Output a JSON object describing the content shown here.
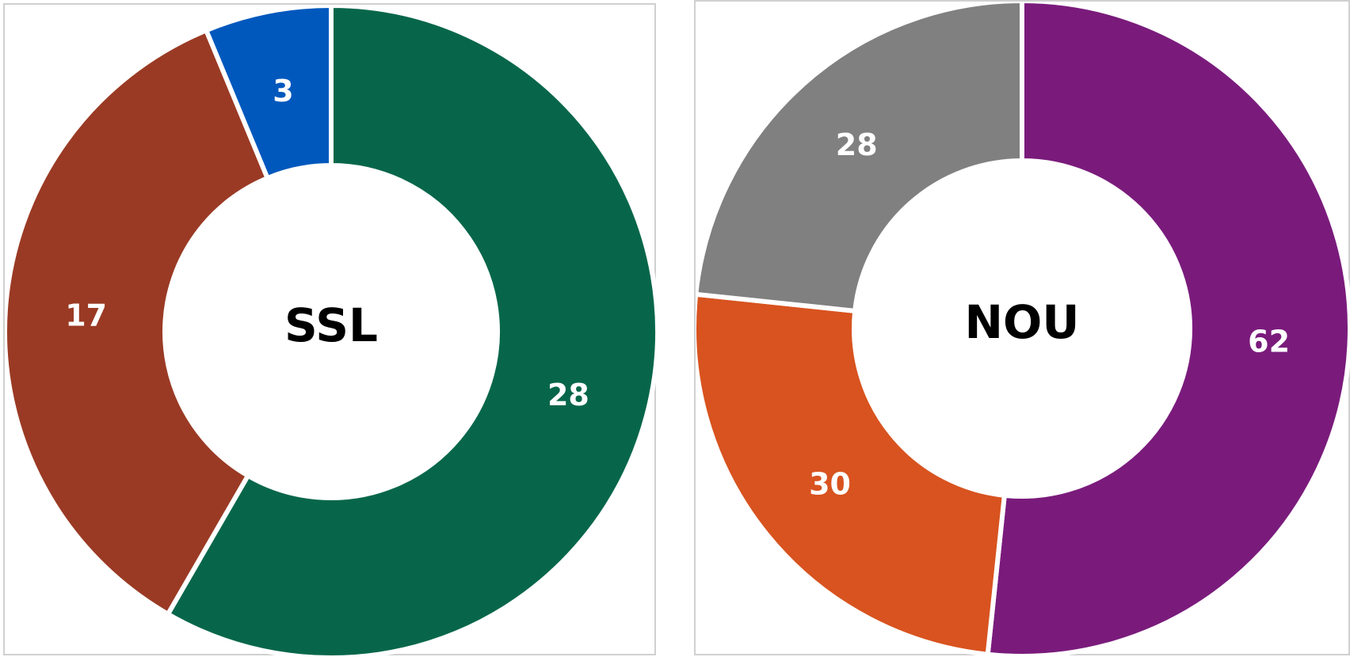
{
  "chart_data": [
    {
      "type": "pie",
      "center_label": "SSL",
      "categories": [
        "",
        "",
        ""
      ],
      "values": [
        28,
        17,
        3
      ],
      "colors": [
        "#07664A",
        "#9A3A24",
        "#0058BD"
      ],
      "data_labels": [
        "28",
        "17",
        "3"
      ]
    },
    {
      "type": "pie",
      "center_label": "NOU",
      "categories": [
        "",
        "",
        ""
      ],
      "values": [
        62,
        30,
        28
      ],
      "colors": [
        "#7A1B7C",
        "#D8531F",
        "#808080"
      ],
      "data_labels": [
        "62",
        "30",
        "28"
      ]
    }
  ]
}
